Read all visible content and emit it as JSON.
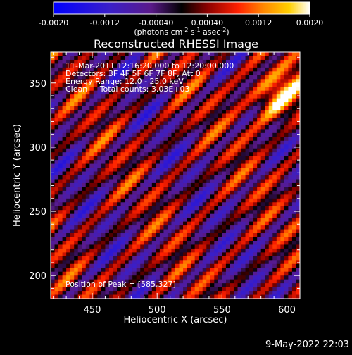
{
  "chart_data": {
    "type": "heatmap",
    "title": "Reconstructed RHESSI Image",
    "xlabel": "Heliocentric X (arcsec)",
    "ylabel": "Heliocentric Y (arcsec)",
    "xlim": [
      418,
      610
    ],
    "ylim": [
      182,
      374
    ],
    "xticks": [
      450,
      500,
      550,
      600
    ],
    "yticks": [
      200,
      250,
      300,
      350
    ],
    "annotations": {
      "time_range": "11-Mar-2011 12:16:20.000 to 12:20:00.000",
      "detectors": "Detectors: 3F 4F 5F 6F 7F 8F, Att 0",
      "energy_range": "Energy Range: 12.0 - 25.0 keV",
      "clean_info": "Clean     Total counts: 3.03E+03",
      "peak_position": "Position of Peak = [585,327]"
    },
    "colorbar": {
      "range": [
        -0.002,
        0.002
      ],
      "ticks": [
        "-0.0020",
        "-0.0012",
        "-0.00040",
        "0.00040",
        "0.0012",
        "0.0020"
      ],
      "unit_main": "(photons cm",
      "unit_exp1": "-2",
      "unit_mid": " s",
      "unit_exp2": "-1",
      "unit_tail": " asec",
      "unit_exp3": "-2",
      "unit_close": ")",
      "colormap": "blue-purple-black-red-orange-yellow-white"
    },
    "image": {
      "pattern": "diagonal fringe stripes running upper-left to lower-right",
      "peak_xy": [
        585,
        327
      ]
    },
    "grid": false
  },
  "footer_timestamp": "9-May-2022 22:03"
}
